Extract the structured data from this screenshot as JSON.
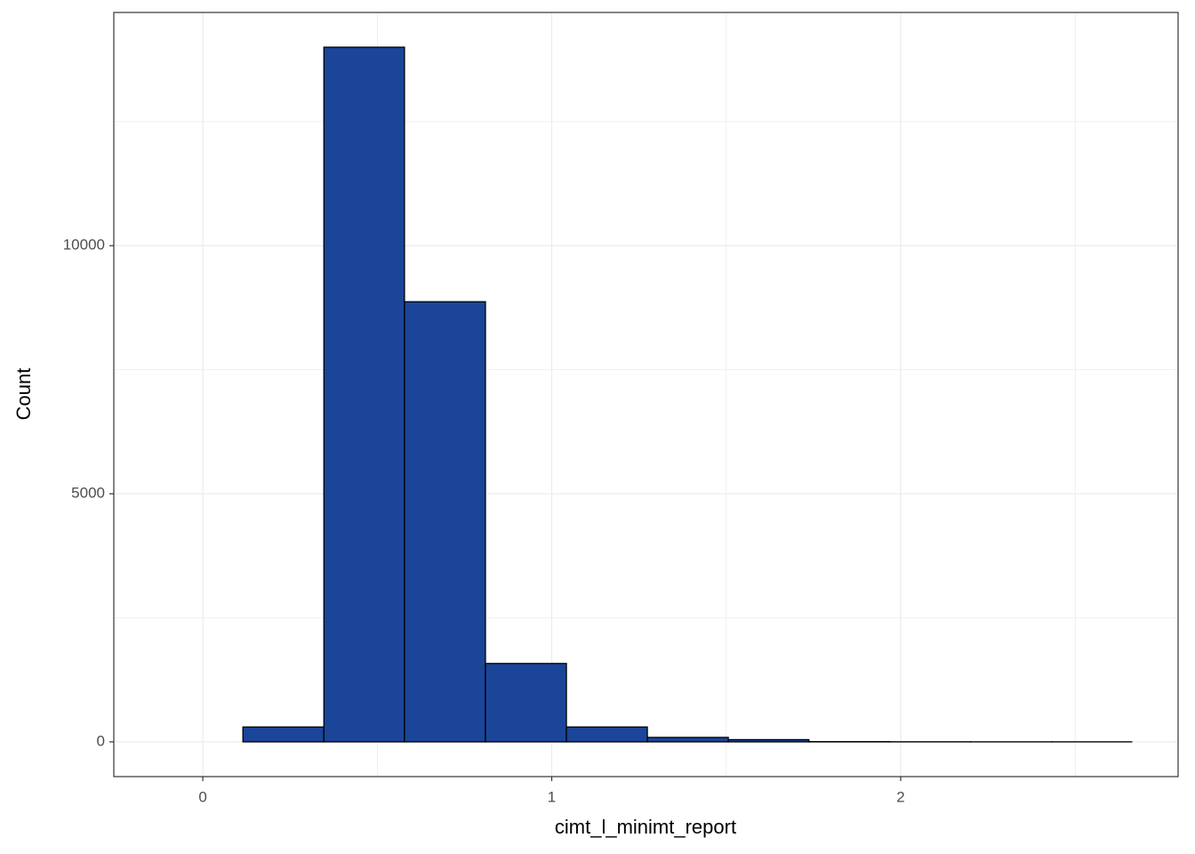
{
  "chart_data": {
    "type": "histogram",
    "x_label": "cimt_l_minimt_report",
    "y_label": "Count",
    "bins": [
      -0.117,
      0.115,
      0.347,
      0.578,
      0.81,
      1.042,
      1.274,
      1.506,
      1.737,
      1.969,
      2.201,
      2.433,
      2.662
    ],
    "values": [
      0,
      300,
      14000,
      8870,
      1580,
      300,
      90,
      45,
      5,
      2,
      1,
      1
    ],
    "color": "#1a4599",
    "edge_color": "#000000",
    "xlim": [
      -0.255,
      2.795
    ],
    "ylim": [
      -700,
      14700
    ],
    "xticks": [
      0,
      1,
      2
    ],
    "yticks": [
      0,
      5000,
      10000
    ],
    "x_minor_grid": [
      0.5,
      1.5,
      2.5
    ],
    "y_minor_grid": [
      2500,
      7500,
      12500
    ],
    "grid": true
  }
}
